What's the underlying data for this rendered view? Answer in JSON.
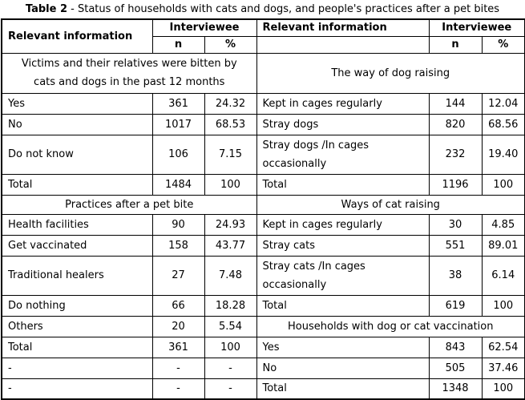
{
  "title": {
    "bold": "Table 2",
    "rest": "- Status of households with cats and dogs, and people's practices after a pet bites"
  },
  "headers": {
    "left": {
      "info": "Relevant information",
      "group": "Interviewee",
      "n": "n",
      "pct": "%"
    },
    "right": {
      "info": "Relevant information",
      "group": "Interviewee",
      "n": "n",
      "pct": "%"
    }
  },
  "rows": [
    {
      "left": {
        "section": [
          "Victims and their relatives were bitten by",
          "cats and dogs in the past 12 months"
        ]
      },
      "right": {
        "section": "The way of dog raising"
      }
    },
    {
      "left": {
        "label": "Yes",
        "n": "361",
        "pct": "24.32"
      },
      "right": {
        "label": "Kept in cages regularly",
        "n": "144",
        "pct": "12.04"
      }
    },
    {
      "left": {
        "label": "No",
        "n": "1017",
        "pct": "68.53"
      },
      "right": {
        "label": "Stray dogs",
        "n": "820",
        "pct": "68.56"
      }
    },
    {
      "left": {
        "label": "Do not know",
        "n": "106",
        "pct": "7.15"
      },
      "right": {
        "label": [
          "Stray dogs /In cages",
          "occasionally"
        ],
        "n": "232",
        "pct": "19.40"
      }
    },
    {
      "left": {
        "label": "Total",
        "n": "1484",
        "pct": "100"
      },
      "right": {
        "label": "Total",
        "n": "1196",
        "pct": "100"
      }
    },
    {
      "left": {
        "section": "Practices after a pet bite"
      },
      "right": {
        "section": "Ways of cat raising"
      }
    },
    {
      "left": {
        "label": "Health facilities",
        "n": "90",
        "pct": "24.93"
      },
      "right": {
        "label": "Kept in cages regularly",
        "n": "30",
        "pct": "4.85"
      }
    },
    {
      "left": {
        "label": "Get vaccinated",
        "n": "158",
        "pct": "43.77"
      },
      "right": {
        "label": "Stray cats",
        "n": "551",
        "pct": "89.01"
      }
    },
    {
      "left": {
        "label": "Traditional healers",
        "n": "27",
        "pct": "7.48"
      },
      "right": {
        "label": [
          "Stray cats /In cages",
          "occasionally"
        ],
        "n": "38",
        "pct": "6.14"
      }
    },
    {
      "left": {
        "label": "Do nothing",
        "n": "66",
        "pct": "18.28"
      },
      "right": {
        "label": "Total",
        "n": "619",
        "pct": "100"
      }
    },
    {
      "left": {
        "label": "Others",
        "n": "20",
        "pct": "5.54"
      },
      "right": {
        "section": "Households with dog or cat vaccination"
      }
    },
    {
      "left": {
        "label": "Total",
        "n": "361",
        "pct": "100"
      },
      "right": {
        "label": "Yes",
        "n": "843",
        "pct": "62.54"
      }
    },
    {
      "left": {
        "label": "-",
        "n": "-",
        "pct": "-"
      },
      "right": {
        "label": "No",
        "n": "505",
        "pct": "37.46"
      }
    },
    {
      "left": {
        "label": "-",
        "n": "-",
        "pct": "-"
      },
      "right": {
        "label": "Total",
        "n": "1348",
        "pct": "100"
      }
    }
  ],
  "colors": {
    "border": "#000000",
    "text": "#000000",
    "background": "#ffffff"
  }
}
